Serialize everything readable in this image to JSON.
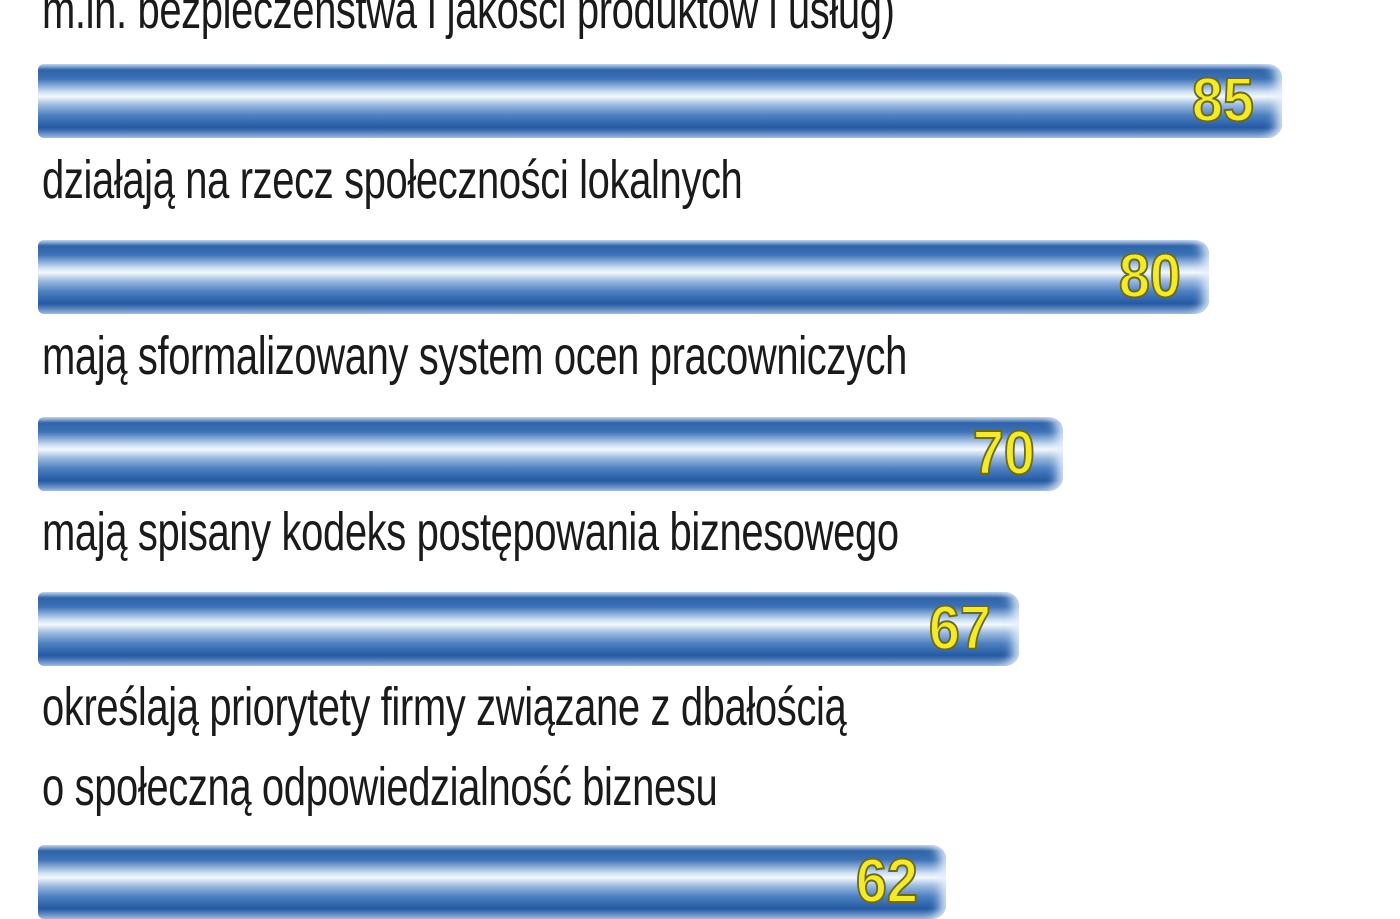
{
  "chart_data": {
    "type": "bar",
    "orientation": "horizontal",
    "categories": [
      "m.in. bezpieczeństwa i jakości produktów i usług)",
      "działają na rzecz społeczności lokalnych",
      "mają sformalizowany system ocen pracowniczych",
      "mają spisany kodeks postępowania biznesowego",
      "określają priorytety firmy związane z dbałością\no społeczną odpowiedzialność biznesu"
    ],
    "label_lines": [
      [
        "m.in. bezpieczeństwa i jakości produktów i usług)"
      ],
      [
        "działają na rzecz społeczności lokalnych"
      ],
      [
        "mają sformalizowany system ocen pracowniczych"
      ],
      [
        "mają spisany kodeks postępowania biznesowego"
      ],
      [
        "określają priorytety firmy związane z dbałością",
        "o społeczną odpowiedzialność biznesu"
      ]
    ],
    "values": [
      85,
      80,
      70,
      67,
      62
    ],
    "data_labels": [
      "85",
      "80",
      "70",
      "67",
      "62"
    ],
    "xlim": [
      0,
      100
    ],
    "grid": false,
    "colors": {
      "bar": "#2f63a8",
      "value_text": "#f2ea2a"
    }
  }
}
